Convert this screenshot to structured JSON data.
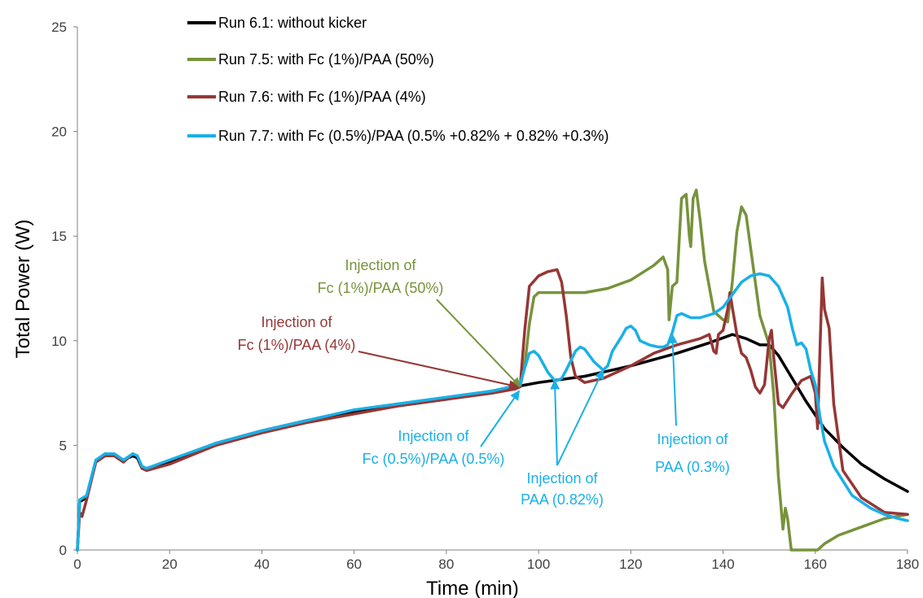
{
  "chart_data": {
    "type": "line",
    "title": "",
    "xlabel": "Time (min)",
    "ylabel": "Total Power (W)",
    "xlim": [
      0,
      180
    ],
    "ylim": [
      0,
      25
    ],
    "xticks": [
      0,
      20,
      40,
      60,
      80,
      100,
      120,
      140,
      160,
      180
    ],
    "yticks": [
      0,
      5,
      10,
      15,
      20,
      25
    ],
    "grid": false,
    "legend": "top-left",
    "series": [
      {
        "name": "Run 6.1: without kicker",
        "color": "#000000",
        "points": [
          [
            0,
            0
          ],
          [
            0.5,
            2.3
          ],
          [
            2,
            2.5
          ],
          [
            4,
            4.2
          ],
          [
            6,
            4.6
          ],
          [
            8,
            4.5
          ],
          [
            10,
            4.3
          ],
          [
            12,
            4.5
          ],
          [
            13,
            4.4
          ],
          [
            14,
            3.9
          ],
          [
            15,
            3.9
          ],
          [
            20,
            4.2
          ],
          [
            30,
            5.1
          ],
          [
            40,
            5.7
          ],
          [
            50,
            6.2
          ],
          [
            60,
            6.6
          ],
          [
            70,
            6.9
          ],
          [
            80,
            7.2
          ],
          [
            90,
            7.6
          ],
          [
            100,
            8.0
          ],
          [
            110,
            8.3
          ],
          [
            120,
            8.8
          ],
          [
            130,
            9.4
          ],
          [
            137,
            9.9
          ],
          [
            142,
            10.3
          ],
          [
            145,
            10.1
          ],
          [
            148,
            9.8
          ],
          [
            150,
            9.8
          ],
          [
            152,
            9.3
          ],
          [
            155,
            8.2
          ],
          [
            158,
            7.1
          ],
          [
            162,
            5.8
          ],
          [
            166,
            4.9
          ],
          [
            170,
            4.1
          ],
          [
            175,
            3.4
          ],
          [
            180,
            2.8
          ]
        ]
      },
      {
        "name": "Run 7.5: with Fc (1%)/PAA (50%)",
        "color": "#77933c",
        "points": [
          [
            96,
            7.8
          ],
          [
            97,
            8.8
          ],
          [
            98,
            10.8
          ],
          [
            99,
            12.1
          ],
          [
            100,
            12.3
          ],
          [
            105,
            12.3
          ],
          [
            110,
            12.3
          ],
          [
            115,
            12.5
          ],
          [
            120,
            12.9
          ],
          [
            125,
            13.6
          ],
          [
            127,
            14.0
          ],
          [
            128,
            13.4
          ],
          [
            128.3,
            11.0
          ],
          [
            129,
            12.6
          ],
          [
            130,
            12.8
          ],
          [
            131,
            16.8
          ],
          [
            132,
            17.0
          ],
          [
            132.7,
            15.0
          ],
          [
            133,
            14.5
          ],
          [
            133.5,
            16.8
          ],
          [
            134.2,
            17.2
          ],
          [
            135,
            15.8
          ],
          [
            136,
            13.8
          ],
          [
            138,
            11.4
          ],
          [
            140,
            11.0
          ],
          [
            141,
            10.9
          ],
          [
            142,
            12.8
          ],
          [
            143,
            15.2
          ],
          [
            144,
            16.4
          ],
          [
            145,
            16.0
          ],
          [
            146,
            14.4
          ],
          [
            148,
            11.2
          ],
          [
            150,
            9.8
          ],
          [
            151,
            7.4
          ],
          [
            152,
            3.5
          ],
          [
            153,
            1.0
          ],
          [
            153.5,
            2.0
          ],
          [
            154,
            1.5
          ],
          [
            154.8,
            0
          ],
          [
            160.5,
            0
          ],
          [
            162,
            0.3
          ],
          [
            165,
            0.7
          ],
          [
            170,
            1.1
          ],
          [
            175,
            1.5
          ],
          [
            180,
            1.7
          ]
        ]
      },
      {
        "name": "Run 7.6: with Fc (1%)/PAA (4%)",
        "color": "#953735",
        "points": [
          [
            0,
            0
          ],
          [
            0.5,
            1.8
          ],
          [
            1,
            1.6
          ],
          [
            2,
            2.4
          ],
          [
            4,
            4.2
          ],
          [
            6,
            4.5
          ],
          [
            8,
            4.5
          ],
          [
            10,
            4.2
          ],
          [
            12,
            4.6
          ],
          [
            13,
            4.5
          ],
          [
            14,
            3.9
          ],
          [
            15,
            3.8
          ],
          [
            20,
            4.1
          ],
          [
            30,
            5.0
          ],
          [
            40,
            5.6
          ],
          [
            50,
            6.1
          ],
          [
            60,
            6.5
          ],
          [
            70,
            6.9
          ],
          [
            80,
            7.2
          ],
          [
            90,
            7.5
          ],
          [
            95,
            7.7
          ],
          [
            96,
            7.8
          ],
          [
            97,
            10.5
          ],
          [
            98,
            12.6
          ],
          [
            100,
            13.1
          ],
          [
            102,
            13.3
          ],
          [
            104,
            13.4
          ],
          [
            105,
            12.8
          ],
          [
            106,
            11.2
          ],
          [
            107,
            9.2
          ],
          [
            108,
            8.3
          ],
          [
            110,
            8.0
          ],
          [
            114,
            8.2
          ],
          [
            120,
            8.8
          ],
          [
            125,
            9.4
          ],
          [
            130,
            9.8
          ],
          [
            135,
            10.1
          ],
          [
            137,
            10.3
          ],
          [
            138,
            9.5
          ],
          [
            138.5,
            9.4
          ],
          [
            139,
            10.3
          ],
          [
            140,
            10.5
          ],
          [
            141,
            11.5
          ],
          [
            141.5,
            12.3
          ],
          [
            142,
            11.6
          ],
          [
            143,
            10.3
          ],
          [
            144,
            9.4
          ],
          [
            145,
            9.2
          ],
          [
            146,
            8.6
          ],
          [
            147,
            7.8
          ],
          [
            148,
            7.5
          ],
          [
            149,
            7.9
          ],
          [
            150,
            10.1
          ],
          [
            150.5,
            10.5
          ],
          [
            151,
            9.2
          ],
          [
            152,
            7.0
          ],
          [
            153,
            6.8
          ],
          [
            155,
            7.5
          ],
          [
            157,
            8.1
          ],
          [
            159,
            8.3
          ],
          [
            160,
            7.5
          ],
          [
            160.5,
            5.8
          ],
          [
            161,
            9.4
          ],
          [
            161.5,
            13.0
          ],
          [
            162,
            11.5
          ],
          [
            163,
            10.6
          ],
          [
            164,
            7.0
          ],
          [
            166,
            3.8
          ],
          [
            170,
            2.5
          ],
          [
            175,
            1.8
          ],
          [
            180,
            1.7
          ]
        ]
      },
      {
        "name": "Run 7.7: with Fc (0.5%)/PAA (0.5% +0.82% + 0.82% +0.3%)",
        "color": "#1ab0e6",
        "points": [
          [
            0,
            0
          ],
          [
            0.5,
            2.4
          ],
          [
            2,
            2.6
          ],
          [
            4,
            4.3
          ],
          [
            6,
            4.6
          ],
          [
            8,
            4.6
          ],
          [
            10,
            4.3
          ],
          [
            12,
            4.6
          ],
          [
            13,
            4.5
          ],
          [
            14,
            4.0
          ],
          [
            15,
            3.9
          ],
          [
            20,
            4.3
          ],
          [
            30,
            5.1
          ],
          [
            40,
            5.7
          ],
          [
            50,
            6.2
          ],
          [
            60,
            6.7
          ],
          [
            70,
            7.0
          ],
          [
            80,
            7.3
          ],
          [
            90,
            7.6
          ],
          [
            96,
            7.9
          ],
          [
            97,
            8.7
          ],
          [
            98,
            9.4
          ],
          [
            99,
            9.5
          ],
          [
            100,
            9.3
          ],
          [
            101,
            8.9
          ],
          [
            102,
            8.5
          ],
          [
            103.5,
            8.1
          ],
          [
            104,
            8.1
          ],
          [
            105,
            8.2
          ],
          [
            106,
            8.6
          ],
          [
            108,
            9.5
          ],
          [
            109,
            9.7
          ],
          [
            110,
            9.6
          ],
          [
            112,
            9.0
          ],
          [
            114,
            8.6
          ],
          [
            115,
            8.8
          ],
          [
            116,
            9.5
          ],
          [
            118,
            10.2
          ],
          [
            119,
            10.6
          ],
          [
            120,
            10.7
          ],
          [
            121,
            10.5
          ],
          [
            122,
            10.0
          ],
          [
            124,
            9.8
          ],
          [
            126,
            9.7
          ],
          [
            127,
            9.7
          ],
          [
            128,
            9.8
          ],
          [
            129,
            10.4
          ],
          [
            130,
            11.2
          ],
          [
            131,
            11.3
          ],
          [
            133,
            11.1
          ],
          [
            135,
            11.1
          ],
          [
            138,
            11.3
          ],
          [
            140,
            11.6
          ],
          [
            142,
            12.2
          ],
          [
            144,
            12.8
          ],
          [
            146,
            13.1
          ],
          [
            148,
            13.2
          ],
          [
            150,
            13.1
          ],
          [
            152,
            12.6
          ],
          [
            154,
            11.6
          ],
          [
            155,
            10.6
          ],
          [
            156,
            9.8
          ],
          [
            157,
            9.9
          ],
          [
            158,
            9.6
          ],
          [
            159,
            8.6
          ],
          [
            160,
            7.9
          ],
          [
            161,
            6.4
          ],
          [
            162,
            5.2
          ],
          [
            164,
            4.0
          ],
          [
            166,
            3.3
          ],
          [
            168,
            2.6
          ],
          [
            170,
            2.3
          ],
          [
            172,
            2.0
          ],
          [
            175,
            1.7
          ],
          [
            178,
            1.5
          ],
          [
            180,
            1.4
          ]
        ]
      }
    ],
    "annotations": [
      {
        "lines": [
          "Injection of",
          "Fc (1%)/PAA (50%)"
        ],
        "color": "#77933c",
        "target": [
          96,
          7.8
        ]
      },
      {
        "lines": [
          "Injection of",
          "Fc (1%)/PAA (4%)"
        ],
        "color": "#953735",
        "target": [
          95.5,
          7.8
        ]
      },
      {
        "lines": [
          "Injection of",
          "Fc (0.5%)/PAA (0.5%)"
        ],
        "color": "#1ab0e6",
        "target": [
          95.8,
          7.6
        ]
      },
      {
        "lines": [
          "Injection of",
          "PAA (0.82%)"
        ],
        "color": "#1ab0e6",
        "targets": [
          [
            103.5,
            8.1
          ],
          [
            114,
            8.6
          ]
        ]
      },
      {
        "lines": [
          "Injection of",
          "PAA (0.3%)"
        ],
        "color": "#1ab0e6",
        "target": [
          129,
          10.3
        ]
      }
    ]
  }
}
